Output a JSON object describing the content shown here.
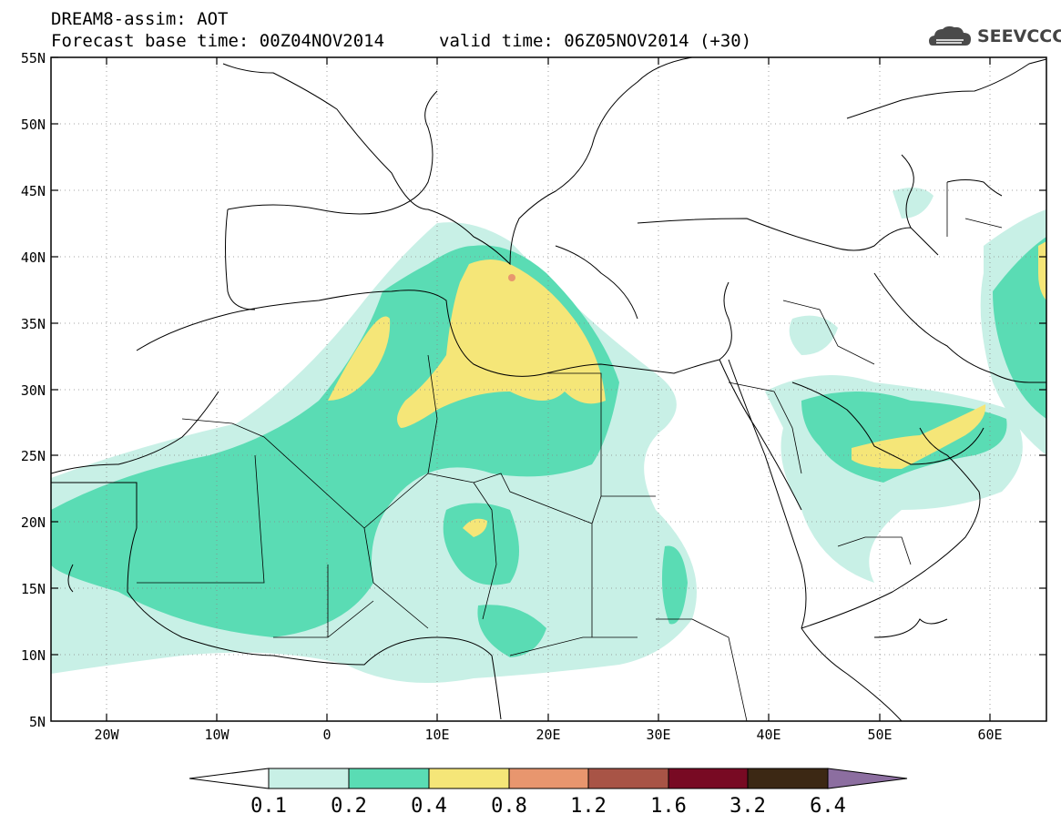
{
  "header": {
    "line1": "DREAM8-assim: AOT",
    "line2_base": "Forecast base time: 00Z04NOV2014",
    "line2_valid": "valid time: 06Z05NOV2014 (+30)"
  },
  "logo": {
    "text": "SEEVCCC",
    "icon": "cloud-icon"
  },
  "axes": {
    "lat_labels": [
      "55N",
      "50N",
      "45N",
      "40N",
      "35N",
      "30N",
      "25N",
      "20N",
      "15N",
      "10N",
      "5N"
    ],
    "lon_labels": [
      "20W",
      "10W",
      "0",
      "10E",
      "20E",
      "30E",
      "40E",
      "50E",
      "60E"
    ],
    "lat_range": [
      5,
      55
    ],
    "lon_range": [
      -25,
      65
    ]
  },
  "colorbar": {
    "labels": [
      "0.1",
      "0.2",
      "0.4",
      "0.8",
      "1.2",
      "1.6",
      "3.2",
      "6.4"
    ],
    "colors": [
      "#ffffff",
      "#c8f0e6",
      "#5adcb4",
      "#f5e678",
      "#e8966e",
      "#a85446",
      "#780a23",
      "#3c2814",
      "#8c6ea0"
    ]
  }
}
